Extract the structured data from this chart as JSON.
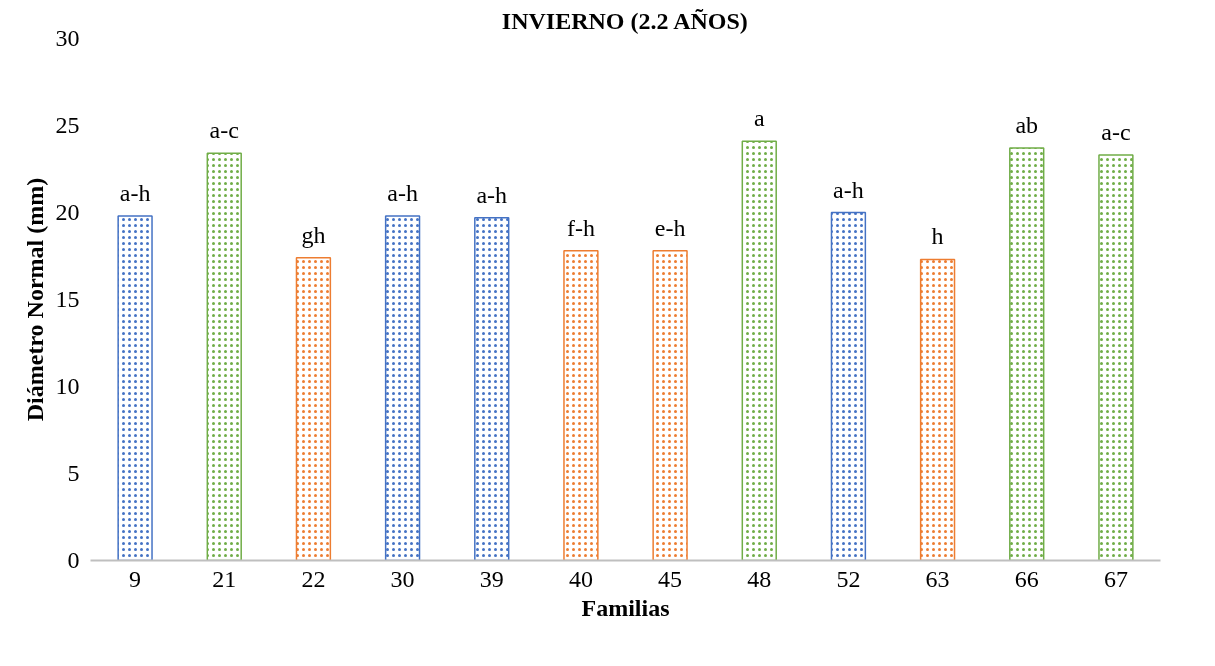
{
  "chart_data": {
    "type": "bar",
    "title": "INVIERNO (2.2 AÑOS)",
    "xlabel": "Familias",
    "ylabel": "Diámetro Normal (mm)",
    "categories": [
      "9",
      "21",
      "22",
      "30",
      "39",
      "40",
      "45",
      "48",
      "52",
      "63",
      "66",
      "67"
    ],
    "values": [
      19.8,
      23.4,
      17.4,
      19.8,
      19.7,
      17.8,
      17.8,
      24.1,
      20.0,
      17.3,
      23.7,
      23.3
    ],
    "colors": [
      "#4472c4",
      "#70ad47",
      "#ed7d31",
      "#4472c4",
      "#4472c4",
      "#ed7d31",
      "#ed7d31",
      "#70ad47",
      "#4472c4",
      "#ed7d31",
      "#70ad47",
      "#70ad47"
    ],
    "ylim": [
      0,
      30
    ],
    "yticks": [
      0,
      5,
      10,
      15,
      20,
      25,
      30
    ],
    "grid": false,
    "annotations": [
      {
        "text": "a-h",
        "x": "9",
        "y": 19.8
      },
      {
        "text": "a-c",
        "x": "21",
        "y": 23.4
      },
      {
        "text": "gh",
        "x": "22",
        "y": 17.4
      },
      {
        "text": "a-h",
        "x": "30",
        "y": 19.8
      },
      {
        "text": "a-h",
        "x": "39",
        "y": 19.7
      },
      {
        "text": "f-h",
        "x": "40",
        "y": 17.8
      },
      {
        "text": "e-h",
        "x": "45",
        "y": 17.8
      },
      {
        "text": "a",
        "x": "48",
        "y": 24.1
      },
      {
        "text": "a-h",
        "x": "52",
        "y": 20.0
      },
      {
        "text": "h",
        "x": "63",
        "y": 17.3
      },
      {
        "text": "ab",
        "x": "66",
        "y": 23.7
      },
      {
        "text": "a-c",
        "x": "67",
        "y": 23.3
      }
    ]
  }
}
